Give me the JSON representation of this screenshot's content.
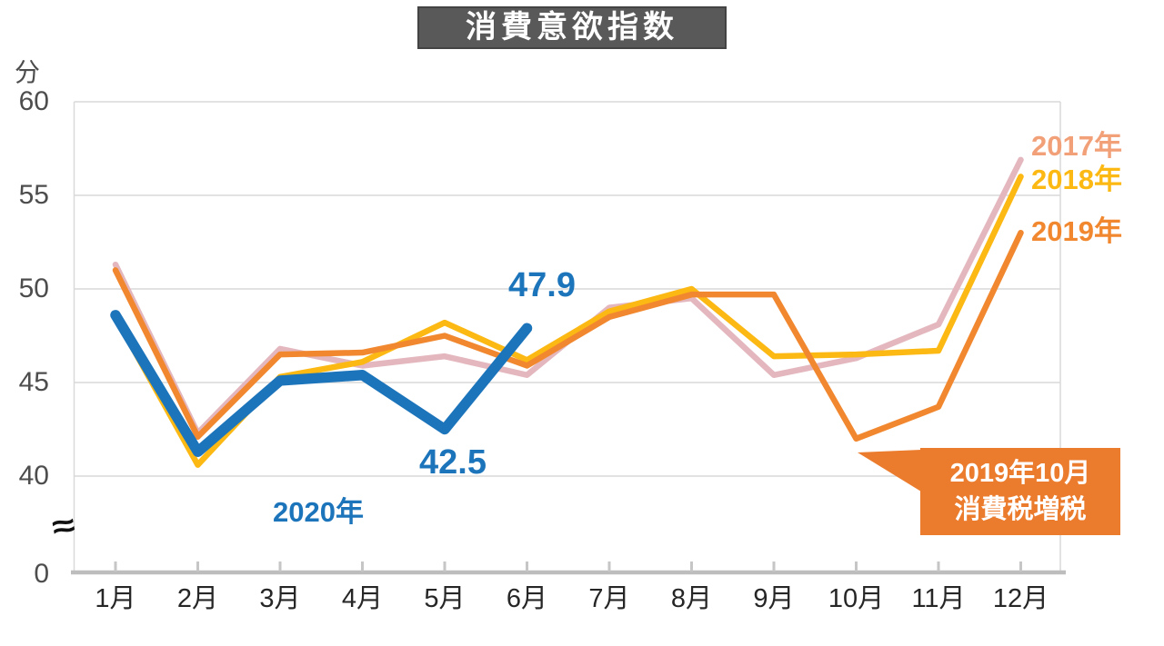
{
  "title": "消費意欲指数",
  "y_axis": {
    "unit": "分",
    "zero_label": "0",
    "break_symbol": "≈"
  },
  "legend": {
    "s2017": "2017年",
    "s2018": "2018年",
    "s2019": "2019年",
    "s2020": "2020年"
  },
  "annotations": {
    "jun_value": "47.9",
    "may_value": "42.5",
    "callout_line1": "2019年10月",
    "callout_line2": "消費税増税"
  },
  "colors": {
    "c2017_line": "#e3b7bd",
    "c2017_label": "#f2a078",
    "c2018": "#fcb813",
    "c2019": "#f1882f",
    "c2020": "#1c74bb",
    "callout_bg": "#ec7c2d",
    "title_bg": "#595959",
    "grid": "#d9d9d9",
    "axis": "#bdbdbd",
    "tick": "#c6c6c6"
  },
  "chart_data": {
    "type": "line",
    "title": "消費意欲指数",
    "ylabel": "分",
    "categories": [
      "1月",
      "2月",
      "3月",
      "4月",
      "5月",
      "6月",
      "7月",
      "8月",
      "9月",
      "10月",
      "11月",
      "12月"
    ],
    "y_ticks": [
      60,
      55,
      50,
      45,
      40
    ],
    "y_axis_break_to_zero": true,
    "ylim": [
      40,
      60
    ],
    "grid": "horizontal-only",
    "legend_position": "right-end-of-lines",
    "series": [
      {
        "key": "2017",
        "name": "2017年",
        "color": "#e3b7bd",
        "values": [
          51.3,
          42.3,
          46.8,
          45.9,
          46.4,
          45.4,
          49.0,
          49.5,
          45.4,
          46.3,
          48.1,
          56.9
        ]
      },
      {
        "key": "2018",
        "name": "2018年",
        "color": "#fcb813",
        "values": [
          48.5,
          40.6,
          45.3,
          46.1,
          48.2,
          46.2,
          48.8,
          50.0,
          46.4,
          46.5,
          46.7,
          56.0
        ]
      },
      {
        "key": "2019",
        "name": "2019年",
        "color": "#f1882f",
        "values": [
          51.0,
          42.1,
          46.5,
          46.6,
          47.5,
          45.9,
          48.5,
          49.7,
          49.7,
          42.0,
          43.7,
          53.0
        ]
      },
      {
        "key": "2020",
        "name": "2020年",
        "color": "#1c74bb",
        "values": [
          48.6,
          41.3,
          45.1,
          45.4,
          42.5,
          47.9,
          null,
          null,
          null,
          null,
          null,
          null
        ]
      }
    ],
    "point_labels": [
      {
        "series": "2020年",
        "month": "5月",
        "value": 42.5
      },
      {
        "series": "2020年",
        "month": "6月",
        "value": 47.9
      }
    ],
    "callout": {
      "text": "2019年10月 消費税増税",
      "points_to": {
        "series": "2019年",
        "month": "10月",
        "value": 42.0
      }
    }
  }
}
